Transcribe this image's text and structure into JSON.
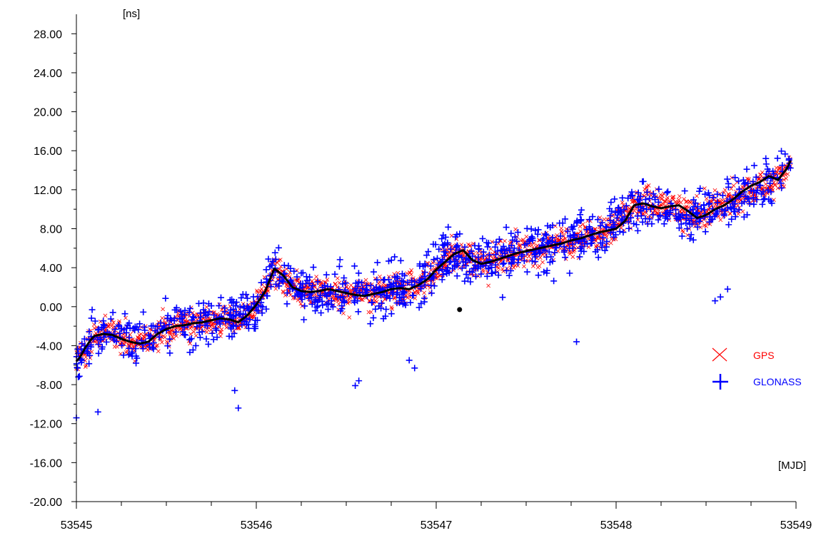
{
  "chart_data": {
    "type": "scatter",
    "title": "",
    "xlabel": "[MJD]",
    "ylabel": "[ns]",
    "xlim": [
      53545,
      53549
    ],
    "ylim": [
      -20,
      30
    ],
    "x_ticks": [
      53545,
      53546,
      53547,
      53548,
      53549
    ],
    "y_ticks": [
      -20,
      -16,
      -12,
      -8,
      -4,
      0,
      4,
      8,
      12,
      16,
      20,
      24,
      28
    ],
    "grid": false,
    "legend_position": "right",
    "series": [
      {
        "name": "GPS",
        "marker": "x",
        "color": "#ff0000",
        "trend_x": [
          53545.0,
          53545.1,
          53545.2,
          53545.3,
          53545.4,
          53545.5,
          53545.6,
          53545.7,
          53545.8,
          53545.9,
          53546.0,
          53546.05,
          53546.1,
          53546.2,
          53546.3,
          53546.5,
          53546.7,
          53546.9,
          53547.0,
          53547.1,
          53547.2,
          53547.3,
          53547.5,
          53547.7,
          53547.9,
          53548.0,
          53548.1,
          53548.3,
          53548.4,
          53548.6,
          53548.8,
          53548.9,
          53548.97
        ],
        "trend_y": [
          -5.5,
          -3.2,
          -2.8,
          -3.5,
          -3.5,
          -2.2,
          -1.8,
          -1.5,
          -1.2,
          -1.5,
          0.2,
          1.8,
          3.8,
          1.8,
          1.6,
          1.3,
          1.6,
          2.2,
          3.8,
          5.8,
          4.5,
          4.8,
          5.6,
          6.6,
          7.4,
          8.2,
          10.5,
          10.2,
          9.5,
          10.4,
          12.5,
          13.0,
          15.0
        ],
        "spread": 1.6
      },
      {
        "name": "GLONASS",
        "marker": "+",
        "color": "#0000ff",
        "trend_x": [
          53545.0,
          53545.1,
          53545.2,
          53545.3,
          53545.4,
          53545.5,
          53545.6,
          53545.7,
          53545.8,
          53545.9,
          53546.0,
          53546.05,
          53546.1,
          53546.2,
          53546.3,
          53546.5,
          53546.7,
          53546.9,
          53547.0,
          53547.1,
          53547.2,
          53547.3,
          53547.5,
          53547.7,
          53547.9,
          53548.0,
          53548.1,
          53548.3,
          53548.4,
          53548.6,
          53548.8,
          53548.9,
          53548.97
        ],
        "trend_y": [
          -5.5,
          -3.2,
          -2.8,
          -3.5,
          -3.5,
          -2.2,
          -1.8,
          -1.5,
          -1.2,
          -1.5,
          0.2,
          1.8,
          3.8,
          1.8,
          1.6,
          1.3,
          1.6,
          2.2,
          3.8,
          5.8,
          4.5,
          4.8,
          5.6,
          6.6,
          7.4,
          8.2,
          10.5,
          10.2,
          9.5,
          10.4,
          12.5,
          13.0,
          15.0
        ],
        "spread": 3.2,
        "outliers": [
          [
            53545.0,
            -11.4
          ],
          [
            53545.12,
            -10.8
          ],
          [
            53545.9,
            -10.4
          ],
          [
            53545.88,
            -8.6
          ],
          [
            53546.55,
            -8.1
          ],
          [
            53546.57,
            -7.6
          ],
          [
            53546.85,
            -5.5
          ],
          [
            53546.88,
            -6.3
          ],
          [
            53547.78,
            -3.6
          ],
          [
            53548.55,
            0.6
          ],
          [
            53548.58,
            1.0
          ],
          [
            53548.62,
            1.8
          ]
        ]
      },
      {
        "name": "",
        "marker": "line",
        "color": "#000000",
        "x": [
          53545.0,
          53545.02,
          53545.05,
          53545.08,
          53545.1,
          53545.15,
          53545.2,
          53545.25,
          53545.3,
          53545.35,
          53545.4,
          53545.45,
          53545.5,
          53545.55,
          53545.6,
          53545.65,
          53545.7,
          53545.75,
          53545.8,
          53545.85,
          53545.9,
          53545.95,
          53546.0,
          53546.05,
          53546.08,
          53546.1,
          53546.15,
          53546.2,
          53546.25,
          53546.3,
          53546.35,
          53546.4,
          53546.45,
          53546.5,
          53546.55,
          53546.6,
          53546.65,
          53546.7,
          53546.75,
          53546.8,
          53546.85,
          53546.9,
          53546.95,
          53547.0,
          53547.05,
          53547.1,
          53547.15,
          53547.2,
          53547.25,
          53547.3,
          53547.35,
          53547.4,
          53547.45,
          53547.5,
          53547.55,
          53547.6,
          53547.65,
          53547.7,
          53547.75,
          53547.8,
          53547.85,
          53547.9,
          53547.95,
          53548.0,
          53548.05,
          53548.1,
          53548.15,
          53548.2,
          53548.25,
          53548.3,
          53548.35,
          53548.4,
          53548.45,
          53548.5,
          53548.55,
          53548.6,
          53548.65,
          53548.7,
          53548.75,
          53548.8,
          53548.85,
          53548.9,
          53548.95,
          53548.97
        ],
        "y": [
          -5.6,
          -5.2,
          -4.2,
          -3.4,
          -3.0,
          -2.8,
          -2.9,
          -3.3,
          -3.6,
          -3.8,
          -3.6,
          -2.8,
          -2.3,
          -2.0,
          -1.9,
          -1.7,
          -1.6,
          -1.4,
          -1.2,
          -1.3,
          -1.6,
          -0.9,
          0.2,
          1.6,
          3.0,
          3.9,
          3.2,
          2.0,
          1.6,
          1.5,
          1.6,
          1.8,
          1.6,
          1.4,
          1.2,
          1.1,
          1.3,
          1.5,
          1.8,
          1.9,
          1.8,
          2.2,
          2.8,
          3.8,
          4.6,
          5.4,
          5.8,
          4.8,
          4.4,
          4.6,
          4.9,
          5.2,
          5.5,
          5.7,
          5.9,
          6.1,
          6.3,
          6.5,
          6.8,
          7.0,
          7.3,
          7.6,
          7.8,
          8.0,
          8.8,
          10.4,
          10.6,
          10.3,
          10.1,
          10.3,
          10.4,
          9.8,
          9.1,
          9.4,
          10.0,
          10.4,
          11.0,
          11.8,
          12.4,
          12.8,
          13.4,
          13.0,
          14.2,
          15.0
        ]
      },
      {
        "name": "",
        "marker": "dot",
        "color": "#000000",
        "x": [
          53547.13
        ],
        "y": [
          -0.3
        ]
      }
    ]
  },
  "legend": [
    {
      "label": "GPS",
      "symbol": "x",
      "color": "#ff0000"
    },
    {
      "label": "GLONASS",
      "symbol": "+",
      "color": "#0000ff"
    }
  ]
}
